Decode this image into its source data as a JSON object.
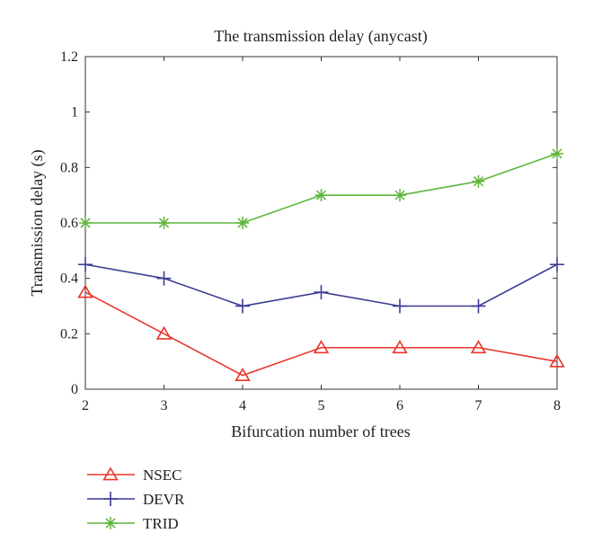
{
  "chart_data": {
    "type": "line",
    "title": "The transmission delay (anycast)",
    "xlabel": "Bifurcation number of trees",
    "ylabel": "Transmission delay (s)",
    "x": [
      2,
      3,
      4,
      5,
      6,
      7,
      8
    ],
    "xlim": [
      2,
      8
    ],
    "ylim": [
      0,
      1.2
    ],
    "xticks": [
      "2",
      "3",
      "4",
      "5",
      "6",
      "7",
      "8"
    ],
    "yticks": [
      "0",
      "0.2",
      "0.4",
      "0.6",
      "0.8",
      "1",
      "1.2"
    ],
    "grid": false,
    "legend_position": "below",
    "series": [
      {
        "name": "NSEC",
        "marker": "triangle",
        "color": "#e8362a",
        "values": [
          0.35,
          0.2,
          0.05,
          0.15,
          0.15,
          0.15,
          0.1
        ]
      },
      {
        "name": "DEVR",
        "marker": "plus",
        "color": "#3c3c96",
        "values": [
          0.45,
          0.4,
          0.3,
          0.35,
          0.3,
          0.3,
          0.45
        ]
      },
      {
        "name": "TRID",
        "marker": "asterisk",
        "color": "#5cb53a",
        "values": [
          0.6,
          0.6,
          0.6,
          0.7,
          0.7,
          0.75,
          0.85
        ]
      }
    ]
  }
}
